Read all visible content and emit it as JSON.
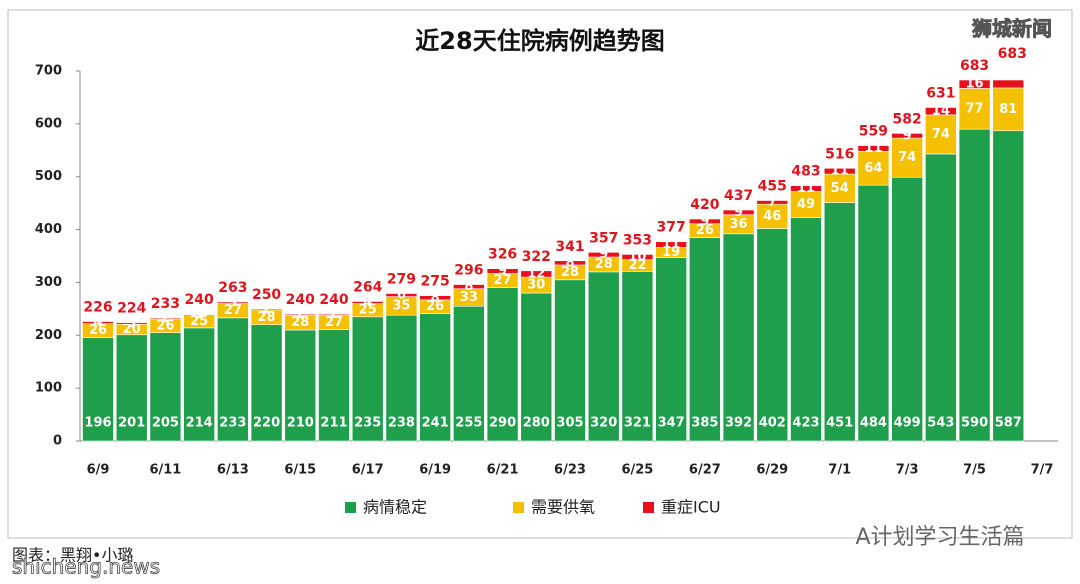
{
  "chart_data": {
    "type": "stacked-bar",
    "title": "近28天住院病例趋势图",
    "categories": [
      "6/9",
      null,
      "6/11",
      null,
      "6/13",
      null,
      "6/15",
      null,
      "6/17",
      null,
      "6/19",
      null,
      "6/21",
      null,
      "6/23",
      null,
      "6/25",
      null,
      "6/27",
      null,
      "6/29",
      null,
      "7/1",
      null,
      "7/3",
      null,
      "7/5",
      null,
      "7/7"
    ],
    "series": [
      {
        "name": "病情稳定",
        "color": "#1f9e4b",
        "values": [
          196,
          201,
          205,
          214,
          233,
          220,
          210,
          211,
          235,
          238,
          241,
          255,
          290,
          280,
          305,
          320,
          321,
          347,
          385,
          392,
          402,
          423,
          451,
          484,
          499,
          543,
          590,
          587,
          null
        ]
      },
      {
        "name": "需要供氧",
        "color": "#f5c000",
        "values": [
          26,
          20,
          26,
          25,
          27,
          28,
          28,
          27,
          25,
          35,
          26,
          33,
          27,
          30,
          28,
          28,
          22,
          19,
          26,
          36,
          46,
          49,
          54,
          64,
          74,
          74,
          77,
          81,
          null
        ]
      },
      {
        "name": "重症ICU",
        "color": "#e8101a",
        "values": [
          4,
          3,
          2,
          1,
          3,
          2,
          2,
          2,
          4,
          6,
          8,
          8,
          9,
          12,
          8,
          9,
          10,
          11,
          9,
          9,
          7,
          11,
          11,
          11,
          9,
          14,
          16,
          15,
          null
        ]
      }
    ],
    "totals": [
      226,
      224,
      233,
      240,
      263,
      250,
      240,
      240,
      264,
      279,
      275,
      296,
      326,
      322,
      341,
      357,
      353,
      377,
      420,
      437,
      455,
      483,
      516,
      559,
      582,
      631,
      683,
      683,
      null
    ],
    "ylim": [
      0,
      700
    ],
    "yticks": [
      0,
      100,
      200,
      300,
      400,
      500,
      600,
      700
    ],
    "grid": false
  },
  "watermarks": {
    "top_right": "狮城新闻",
    "credit": "图表：黑翔•小璐",
    "site": "shicheng.news",
    "account": "A计划学习生活篇"
  }
}
